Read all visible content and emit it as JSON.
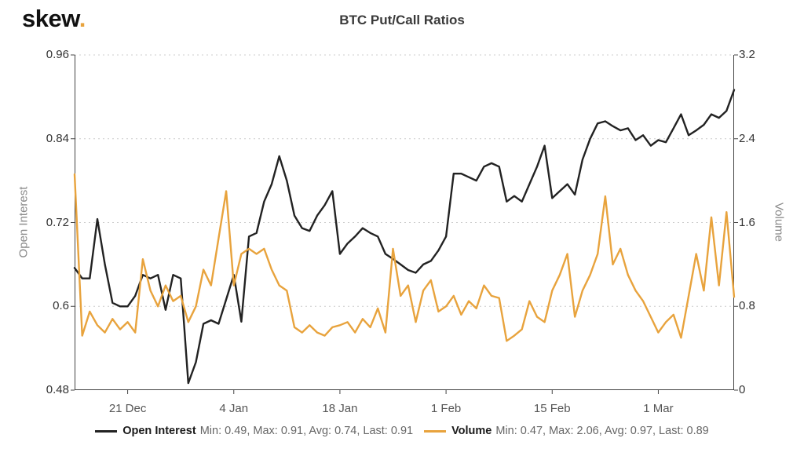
{
  "brand": {
    "logo_text": "skew",
    "logo_dot": ".",
    "accent_color": "#e8a33d"
  },
  "chart_data": {
    "type": "line",
    "title": "BTC Put/Call Ratios",
    "grid": "horizontal-dotted",
    "legend_position": "bottom",
    "x_tick_labels": [
      "21 Dec",
      "4 Jan",
      "18 Jan",
      "1 Feb",
      "15 Feb",
      "1 Mar"
    ],
    "x_tick_indices": [
      7,
      21,
      35,
      49,
      63,
      77
    ],
    "yaxis_left": {
      "label": "Open Interest",
      "ticks": [
        "0.96",
        "0.84",
        "0.72",
        "0.6",
        "0.48"
      ],
      "range": [
        0.48,
        0.96
      ]
    },
    "yaxis_right": {
      "label": "Volume",
      "ticks": [
        "3.2",
        "2.4",
        "1.6",
        "0.8",
        "0"
      ],
      "range": [
        0,
        3.2
      ]
    },
    "series": [
      {
        "name": "Open Interest",
        "axis": "left",
        "color": "#222222",
        "stats": {
          "min": 0.49,
          "max": 0.91,
          "avg": 0.74,
          "last": 0.91
        },
        "values": [
          0.655,
          0.64,
          0.64,
          0.725,
          0.66,
          0.605,
          0.6,
          0.6,
          0.615,
          0.645,
          0.64,
          0.645,
          0.595,
          0.645,
          0.64,
          0.49,
          0.52,
          0.575,
          0.58,
          0.575,
          0.61,
          0.645,
          0.578,
          0.7,
          0.705,
          0.75,
          0.775,
          0.815,
          0.78,
          0.73,
          0.712,
          0.708,
          0.73,
          0.745,
          0.765,
          0.675,
          0.69,
          0.7,
          0.712,
          0.705,
          0.7,
          0.675,
          0.668,
          0.66,
          0.652,
          0.648,
          0.66,
          0.665,
          0.68,
          0.7,
          0.79,
          0.79,
          0.785,
          0.78,
          0.8,
          0.805,
          0.8,
          0.75,
          0.758,
          0.75,
          0.775,
          0.8,
          0.83,
          0.755,
          0.765,
          0.775,
          0.76,
          0.81,
          0.84,
          0.862,
          0.865,
          0.858,
          0.852,
          0.855,
          0.838,
          0.845,
          0.83,
          0.838,
          0.835,
          0.855,
          0.875,
          0.845,
          0.852,
          0.86,
          0.875,
          0.87,
          0.88,
          0.91
        ]
      },
      {
        "name": "Volume",
        "axis": "right",
        "color": "#e8a33d",
        "stats": {
          "min": 0.47,
          "max": 2.06,
          "avg": 0.97,
          "last": 0.89
        },
        "values": [
          2.06,
          0.52,
          0.75,
          0.62,
          0.55,
          0.68,
          0.58,
          0.65,
          0.55,
          1.25,
          0.95,
          0.8,
          1.0,
          0.85,
          0.9,
          0.65,
          0.8,
          1.15,
          1.0,
          1.45,
          1.9,
          1.0,
          1.3,
          1.35,
          1.3,
          1.35,
          1.15,
          1.0,
          0.95,
          0.6,
          0.55,
          0.62,
          0.55,
          0.52,
          0.6,
          0.62,
          0.65,
          0.55,
          0.68,
          0.6,
          0.78,
          0.55,
          1.35,
          0.9,
          1.0,
          0.65,
          0.95,
          1.05,
          0.75,
          0.8,
          0.9,
          0.72,
          0.85,
          0.78,
          1.0,
          0.9,
          0.88,
          0.47,
          0.52,
          0.58,
          0.85,
          0.7,
          0.65,
          0.95,
          1.1,
          1.3,
          0.7,
          0.95,
          1.1,
          1.3,
          1.85,
          1.2,
          1.35,
          1.1,
          0.95,
          0.85,
          0.7,
          0.55,
          0.65,
          0.72,
          0.5,
          0.9,
          1.3,
          0.95,
          1.65,
          1.0,
          1.7,
          0.89
        ]
      }
    ]
  },
  "legend": {
    "open_interest": {
      "label": "Open Interest",
      "stats": "Min: 0.49, Max: 0.91, Avg: 0.74, Last: 0.91",
      "color": "#222222"
    },
    "volume": {
      "label": "Volume",
      "stats": "Min: 0.47, Max: 2.06, Avg: 0.97, Last: 0.89",
      "color": "#e8a33d"
    }
  }
}
